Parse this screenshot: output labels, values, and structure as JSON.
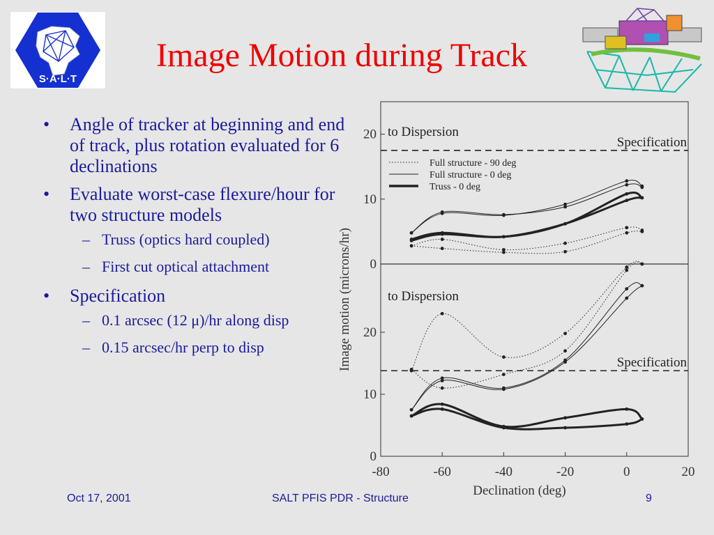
{
  "slide": {
    "title": "Image Motion during Track",
    "bullets": [
      {
        "text": "Angle of tracker at beginning and end of track, plus rotation evaluated for 6 declinations",
        "subs": []
      },
      {
        "text": "Evaluate worst-case flexure/hour for two structure models",
        "subs": [
          "Truss (optics hard coupled)",
          "First cut optical attachment"
        ]
      },
      {
        "text": "Specification",
        "subs": [
          "0.1 arcsec (12 μ)/hr along disp",
          "0.15 arcsec/hr perp to disp"
        ]
      }
    ],
    "logo_text": "S·A·L·T"
  },
  "footer": {
    "date": "Oct 17, 2001",
    "center": "SALT PFIS PDR - Structure",
    "page": "9"
  },
  "chart_data": [
    {
      "type": "line",
      "panel": "top",
      "annotation": "to Dispersion",
      "spec_label": "Specification",
      "spec_value": 17.5,
      "ylim": [
        0,
        25
      ],
      "xlim": [
        -80,
        20
      ],
      "yticks": [
        "0",
        "10",
        "20"
      ],
      "legend_position": "upper-left",
      "series": [
        {
          "name": "Full structure - 90 deg",
          "style": "dotted",
          "width": 1,
          "x": [
            -70,
            -60,
            -40,
            -20,
            0,
            5
          ],
          "y": [
            2.8,
            2.4,
            1.8,
            1.9,
            4.8,
            5.0
          ]
        },
        {
          "name": "Full structure - 90 deg",
          "style": "dotted",
          "width": 1,
          "x": [
            -70,
            -60,
            -40,
            -20,
            0,
            5
          ],
          "y": [
            2.8,
            3.8,
            2.2,
            3.2,
            5.6,
            5.2
          ]
        },
        {
          "name": "Full structure - 0 deg",
          "style": "solid",
          "width": 1,
          "x": [
            -70,
            -60,
            -40,
            -20,
            0,
            5
          ],
          "y": [
            4.8,
            7.8,
            7.5,
            9.2,
            12.8,
            12.0
          ]
        },
        {
          "name": "Full structure - 0 deg",
          "style": "solid",
          "width": 1,
          "x": [
            -70,
            -60,
            -40,
            -20,
            0,
            5
          ],
          "y": [
            4.8,
            8.0,
            7.6,
            8.8,
            12.2,
            11.8
          ]
        },
        {
          "name": "Truss - 0 deg",
          "style": "solid",
          "width": 3,
          "x": [
            -70,
            -60,
            -40,
            -20,
            0,
            5
          ],
          "y": [
            3.8,
            4.8,
            4.2,
            6.2,
            10.8,
            10.2
          ]
        },
        {
          "name": "Truss - 0 deg",
          "style": "solid",
          "width": 3,
          "x": [
            -70,
            -60,
            -40,
            -20,
            0,
            5
          ],
          "y": [
            3.6,
            4.6,
            4.2,
            6.2,
            9.8,
            10.2
          ]
        }
      ]
    },
    {
      "type": "line",
      "panel": "bottom",
      "annotation": "to Dispersion",
      "spec_label": "Specification",
      "spec_value": 13.8,
      "ylim": [
        0,
        31
      ],
      "xlim": [
        -80,
        20
      ],
      "xticks": [
        "-80",
        "-60",
        "-40",
        "-20",
        "0",
        "20"
      ],
      "yticks": [
        "0",
        "10",
        "20"
      ],
      "xlabel": "Declination (deg)",
      "ylabel": "Image motion (microns/hr)",
      "series": [
        {
          "name": "Full structure - 90 deg",
          "style": "dotted",
          "width": 1,
          "x": [
            -70,
            -60,
            -40,
            -20,
            0,
            5
          ],
          "y": [
            13.8,
            23.0,
            16.0,
            19.8,
            30.5,
            31.0
          ]
        },
        {
          "name": "Full structure - 90 deg",
          "style": "dotted",
          "width": 1,
          "x": [
            -70,
            -60,
            -40,
            -20,
            0,
            5
          ],
          "y": [
            14.0,
            11.0,
            13.2,
            17.0,
            30.0,
            31.0
          ]
        },
        {
          "name": "Full structure - 0 deg",
          "style": "solid",
          "width": 1,
          "x": [
            -70,
            -60,
            -40,
            -20,
            0,
            5
          ],
          "y": [
            7.5,
            12.6,
            11.0,
            15.5,
            27.0,
            27.5
          ]
        },
        {
          "name": "Full structure - 0 deg",
          "style": "solid",
          "width": 1,
          "x": [
            -70,
            -60,
            -40,
            -20,
            0,
            5
          ],
          "y": [
            7.5,
            12.2,
            10.8,
            15.2,
            25.5,
            27.5
          ]
        },
        {
          "name": "Truss - 0 deg",
          "style": "solid",
          "width": 3,
          "x": [
            -70,
            -60,
            -40,
            -20,
            0,
            5
          ],
          "y": [
            6.5,
            8.4,
            4.8,
            6.2,
            7.6,
            6.0
          ]
        },
        {
          "name": "Truss - 0 deg",
          "style": "solid",
          "width": 3,
          "x": [
            -70,
            -60,
            -40,
            -20,
            0,
            5
          ],
          "y": [
            6.5,
            7.6,
            4.6,
            4.6,
            5.2,
            6.0
          ]
        }
      ]
    }
  ],
  "colors": {
    "background": "#e6e6e6",
    "title": "#f00000",
    "text": "#1a1a9c",
    "logo": "#1530d0"
  }
}
